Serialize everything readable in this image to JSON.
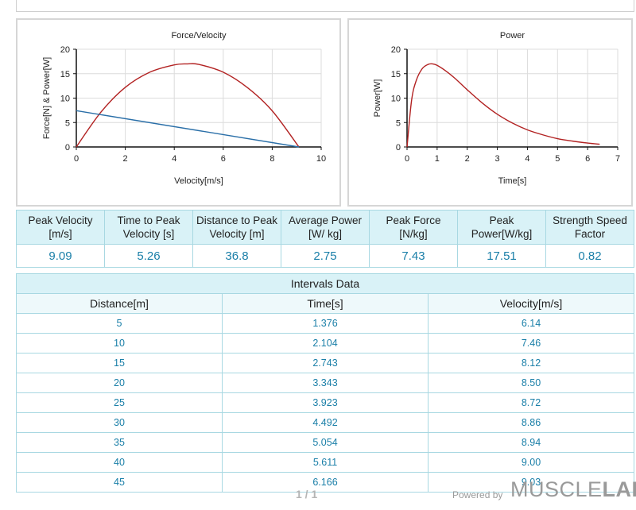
{
  "chart_data": [
    {
      "type": "line",
      "title": "Force/Velocity",
      "xlabel": "Velocity[m/s]",
      "ylabel": "Force[N] & Power[W]",
      "xlim": [
        0,
        10
      ],
      "ylim": [
        0,
        20
      ],
      "x_ticks": [
        "0",
        "2",
        "4",
        "6",
        "8",
        "10"
      ],
      "y_ticks": [
        "0",
        "5",
        "10",
        "15",
        "20"
      ],
      "grid": true,
      "series": [
        {
          "color": "#b22222",
          "x": [
            0,
            1,
            2,
            3,
            4,
            4.55,
            5,
            6,
            7,
            8,
            9.09
          ],
          "y": [
            0,
            7.1,
            12.2,
            15.3,
            16.8,
            17.0,
            16.9,
            15.3,
            12.1,
            7.4,
            0
          ]
        },
        {
          "color": "#2a6fa8",
          "x": [
            0,
            9.09
          ],
          "y": [
            7.43,
            0
          ]
        }
      ]
    },
    {
      "type": "line",
      "title": "Power",
      "xlabel": "Time[s]",
      "ylabel": "Power[W]",
      "xlim": [
        0,
        7
      ],
      "ylim": [
        0,
        20
      ],
      "x_ticks": [
        "0",
        "1",
        "2",
        "3",
        "4",
        "5",
        "6",
        "7"
      ],
      "y_ticks": [
        "0",
        "5",
        "10",
        "15",
        "20"
      ],
      "grid": true,
      "series": [
        {
          "color": "#b22222",
          "x": [
            0,
            0.15,
            0.3,
            0.5,
            0.7,
            0.85,
            1.0,
            1.3,
            1.6,
            2.0,
            2.5,
            3.0,
            3.5,
            4.0,
            4.5,
            5.0,
            5.5,
            6.0,
            6.4
          ],
          "y": [
            0,
            9.5,
            13.5,
            16.0,
            16.9,
            17.0,
            16.7,
            15.5,
            14.0,
            11.7,
            9.0,
            6.7,
            4.9,
            3.5,
            2.5,
            1.7,
            1.2,
            0.8,
            0.55
          ]
        }
      ]
    }
  ],
  "metrics": {
    "headers": [
      "Peak Velocity [m/s]",
      "Time to Peak Velocity [s]",
      "Distance to Peak Velocity [m]",
      "Average Power [W/ kg]",
      "Peak Force [N/kg]",
      "Peak Power[W/kg]",
      "Strength Speed Factor"
    ],
    "values": [
      "9.09",
      "5.26",
      "36.8",
      "2.75",
      "7.43",
      "17.51",
      "0.82"
    ]
  },
  "intervals": {
    "title": "Intervals Data",
    "headers": [
      "Distance[m]",
      "Time[s]",
      "Velocity[m/s]"
    ],
    "rows": [
      [
        "5",
        "1.376",
        "6.14"
      ],
      [
        "10",
        "2.104",
        "7.46"
      ],
      [
        "15",
        "2.743",
        "8.12"
      ],
      [
        "20",
        "3.343",
        "8.50"
      ],
      [
        "25",
        "3.923",
        "8.72"
      ],
      [
        "30",
        "4.492",
        "8.86"
      ],
      [
        "35",
        "5.054",
        "8.94"
      ],
      [
        "40",
        "5.611",
        "9.00"
      ],
      [
        "45",
        "6.166",
        "9.03"
      ]
    ]
  },
  "footer": {
    "pager": "1 / 1",
    "powered_by": "Powered by",
    "brand_light": "MUSCLE",
    "brand_bold": "LAB",
    "brand_tm": "™"
  }
}
